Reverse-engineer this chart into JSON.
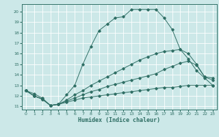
{
  "xlabel": "Humidex (Indice chaleur)",
  "bg_color": "#cce8e8",
  "grid_color": "#ffffff",
  "line_color": "#2e6e64",
  "xlim": [
    -0.5,
    23.5
  ],
  "ylim": [
    10.7,
    20.7
  ],
  "yticks": [
    11,
    12,
    13,
    14,
    15,
    16,
    17,
    18,
    19,
    20
  ],
  "xticks": [
    0,
    1,
    2,
    3,
    4,
    5,
    6,
    7,
    8,
    9,
    10,
    11,
    12,
    13,
    14,
    15,
    16,
    17,
    18,
    19,
    20,
    21,
    22,
    23
  ],
  "series": [
    {
      "x": [
        0,
        1,
        2,
        3,
        4,
        5,
        6,
        7,
        8,
        9,
        10,
        11,
        12,
        13,
        14,
        15,
        16,
        17,
        18,
        19,
        20,
        21,
        22,
        23
      ],
      "y": [
        12.5,
        12.2,
        11.8,
        11.1,
        11.2,
        12.1,
        13.0,
        15.0,
        16.7,
        18.2,
        18.8,
        19.4,
        19.5,
        20.2,
        20.2,
        20.2,
        20.2,
        19.4,
        18.3,
        16.4,
        15.5,
        14.4,
        13.7,
        13.0
      ]
    },
    {
      "x": [
        0,
        1,
        2,
        3,
        4,
        5,
        6,
        7,
        8,
        9,
        10,
        11,
        12,
        13,
        14,
        15,
        16,
        17,
        18,
        19,
        20,
        21,
        22,
        23
      ],
      "y": [
        12.5,
        12.0,
        11.7,
        11.1,
        11.2,
        11.6,
        12.1,
        12.5,
        13.0,
        13.4,
        13.8,
        14.2,
        14.6,
        15.0,
        15.4,
        15.7,
        16.0,
        16.2,
        16.3,
        16.4,
        16.0,
        15.0,
        13.8,
        13.5
      ]
    },
    {
      "x": [
        0,
        1,
        2,
        3,
        4,
        5,
        6,
        7,
        8,
        9,
        10,
        11,
        12,
        13,
        14,
        15,
        16,
        17,
        18,
        19,
        20,
        21,
        22,
        23
      ],
      "y": [
        12.5,
        12.0,
        11.7,
        11.1,
        11.2,
        11.5,
        11.8,
        12.1,
        12.4,
        12.6,
        12.9,
        13.1,
        13.3,
        13.5,
        13.7,
        13.9,
        14.1,
        14.5,
        14.8,
        15.1,
        15.3,
        14.9,
        13.8,
        13.7
      ]
    },
    {
      "x": [
        0,
        1,
        2,
        3,
        4,
        5,
        6,
        7,
        8,
        9,
        10,
        11,
        12,
        13,
        14,
        15,
        16,
        17,
        18,
        19,
        20,
        21,
        22,
        23
      ],
      "y": [
        12.5,
        12.0,
        11.7,
        11.1,
        11.2,
        11.4,
        11.6,
        11.8,
        11.9,
        12.0,
        12.1,
        12.2,
        12.3,
        12.4,
        12.5,
        12.6,
        12.7,
        12.8,
        12.8,
        12.9,
        13.0,
        13.0,
        13.0,
        13.0
      ]
    }
  ]
}
